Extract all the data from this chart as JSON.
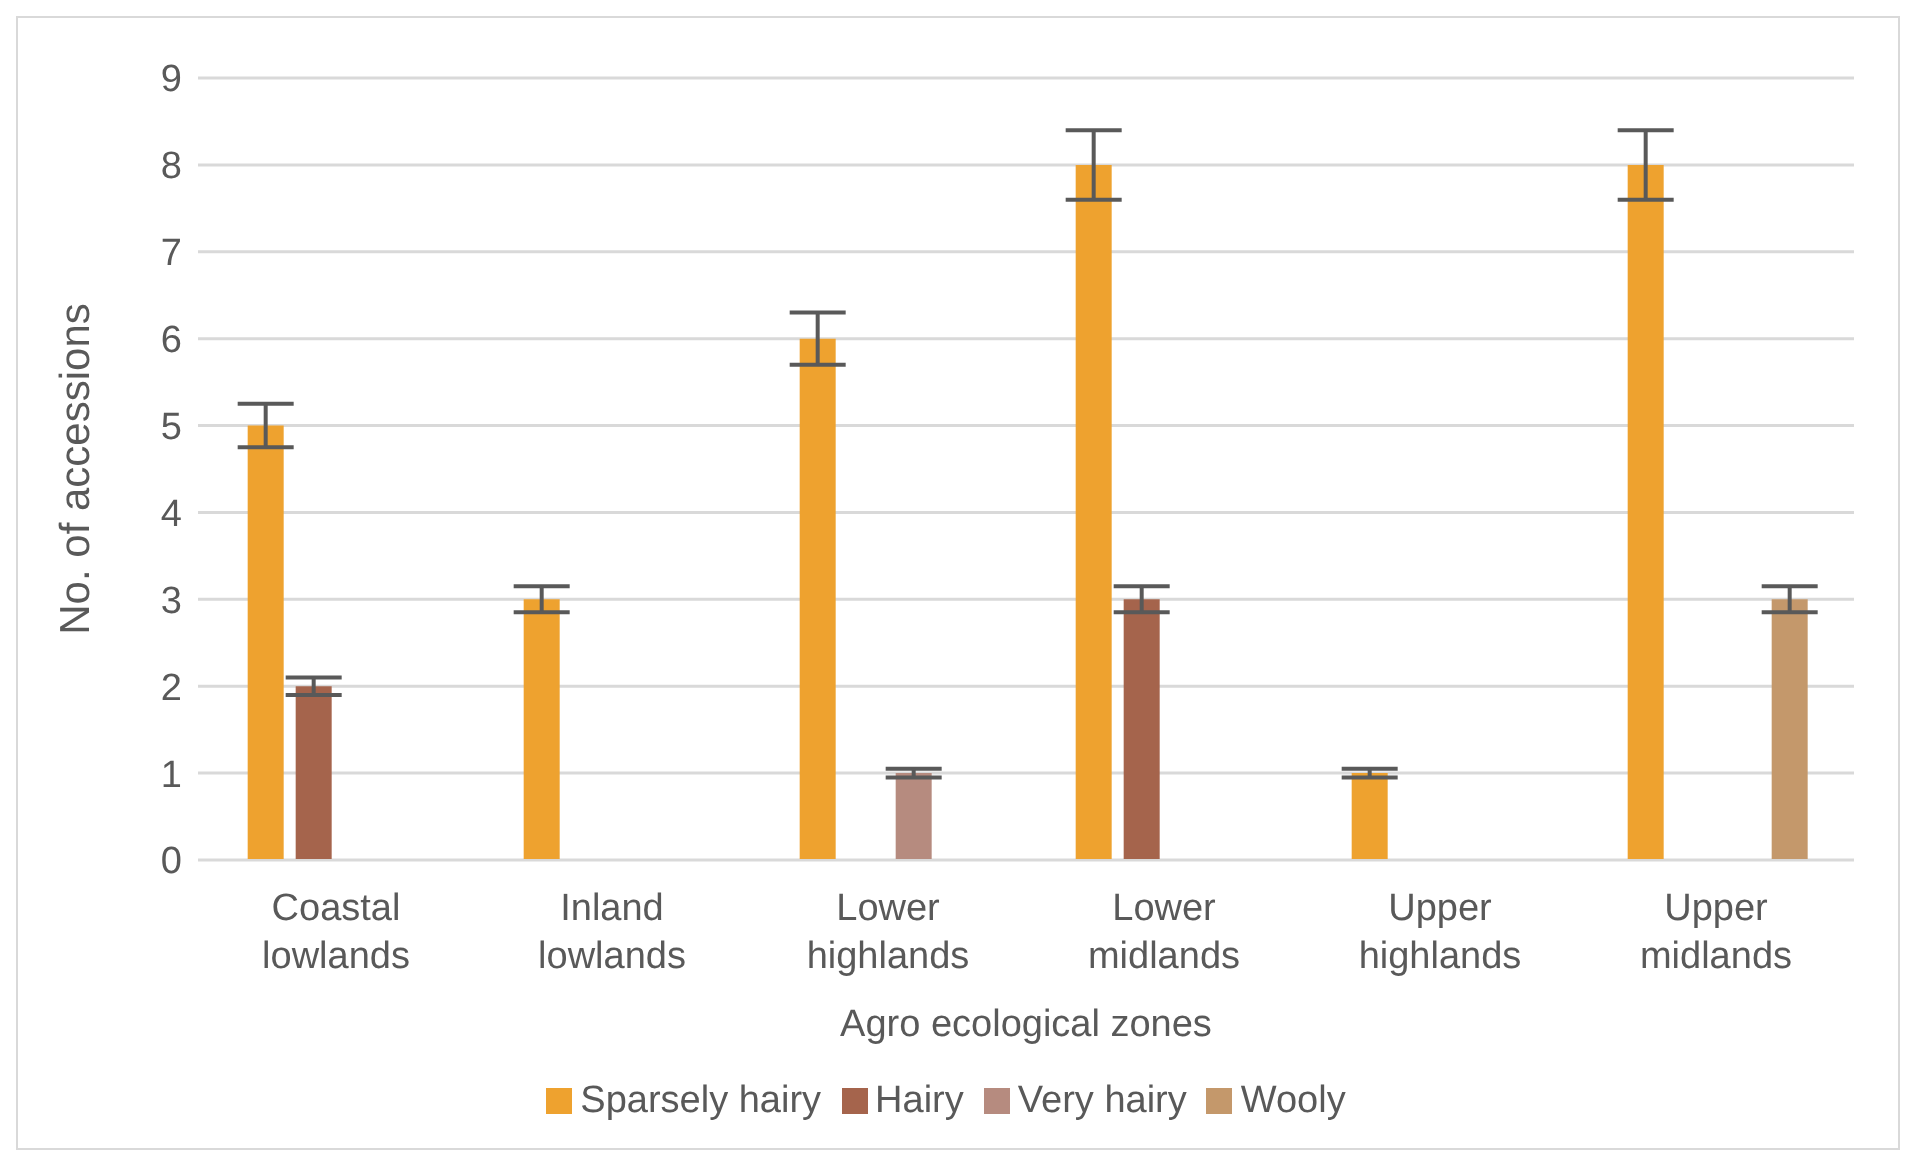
{
  "chart_data": {
    "type": "bar",
    "categories": [
      "Coastal lowlands",
      "Inland lowlands",
      "Lower highlands",
      "Lower midlands",
      "Upper highlands",
      "Upper midlands"
    ],
    "xlabel": "Agro ecological zones",
    "ylabel": "No. of accessions",
    "series": [
      {
        "name": "Sparsely hairy",
        "color": "#eea22f",
        "values": [
          5,
          3,
          6,
          8,
          1,
          8
        ],
        "errors": [
          0.25,
          0.15,
          0.3,
          0.4,
          0.05,
          0.4
        ]
      },
      {
        "name": "Hairy",
        "color": "#a5644c",
        "values": [
          2,
          0,
          0,
          3,
          0,
          0
        ],
        "errors": [
          0.1,
          0,
          0,
          0.15,
          0,
          0
        ]
      },
      {
        "name": "Very hairy",
        "color": "#b68b7f",
        "values": [
          0,
          0,
          1,
          0,
          0,
          0
        ],
        "errors": [
          0,
          0,
          0.05,
          0,
          0,
          0
        ]
      },
      {
        "name": "Wooly",
        "color": "#c4986b",
        "values": [
          0,
          0,
          0,
          0,
          0,
          3
        ],
        "errors": [
          0,
          0,
          0,
          0,
          0,
          0.15
        ]
      }
    ],
    "ylim": [
      0,
      9
    ],
    "yticks": [
      0,
      1,
      2,
      3,
      4,
      5,
      6,
      7,
      8,
      9
    ],
    "grid": "y",
    "legend": "bottom"
  }
}
